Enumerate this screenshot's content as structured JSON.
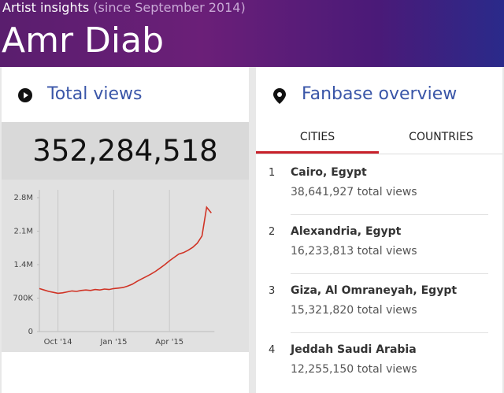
{
  "header": {
    "label": "Artist insights",
    "note": "(since September 2014)",
    "artist": "Amr Diab"
  },
  "total_views": {
    "title": "Total views",
    "value": "352,284,518"
  },
  "chart_data": {
    "type": "line",
    "categories": [
      null,
      null,
      null,
      null,
      "Oct '14",
      null,
      null,
      null,
      null,
      null,
      null,
      null,
      null,
      null,
      null,
      null,
      "Jan '15",
      null,
      null,
      null,
      null,
      null,
      null,
      null,
      null,
      null,
      null,
      null,
      "Apr '15",
      null,
      null,
      null,
      null,
      null,
      null,
      null,
      null,
      null
    ],
    "values": [
      900000,
      870000,
      840000,
      820000,
      800000,
      810000,
      830000,
      850000,
      840000,
      860000,
      870000,
      860000,
      880000,
      870000,
      890000,
      880000,
      900000,
      910000,
      920000,
      950000,
      990000,
      1050000,
      1100000,
      1150000,
      1200000,
      1260000,
      1330000,
      1400000,
      1480000,
      1550000,
      1620000,
      1650000,
      1700000,
      1760000,
      1850000,
      2000000,
      2600000,
      2480000
    ],
    "color": "#d03325",
    "ylim": [
      0,
      2800000
    ],
    "yticks": [
      0,
      {
        "value": 700000,
        "label": "700K"
      },
      {
        "value": 1400000,
        "label": "1.4M"
      },
      {
        "value": 2100000,
        "label": "2.1M"
      },
      {
        "value": 2800000,
        "label": "2.8M"
      }
    ]
  },
  "fanbase": {
    "title": "Fanbase overview",
    "tabs": [
      "CITIES",
      "COUNTRIES"
    ],
    "items": [
      {
        "rank": "1",
        "city": "Cairo, Egypt",
        "views": "38,641,927 total views"
      },
      {
        "rank": "2",
        "city": "Alexandria, Egypt",
        "views": "16,233,813 total views"
      },
      {
        "rank": "3",
        "city": "Giza, Al Omraneyah, Egypt",
        "views": "15,321,820 total views"
      },
      {
        "rank": "4",
        "city": "Jeddah Saudi Arabia",
        "views": "12,255,150 total views"
      }
    ]
  }
}
